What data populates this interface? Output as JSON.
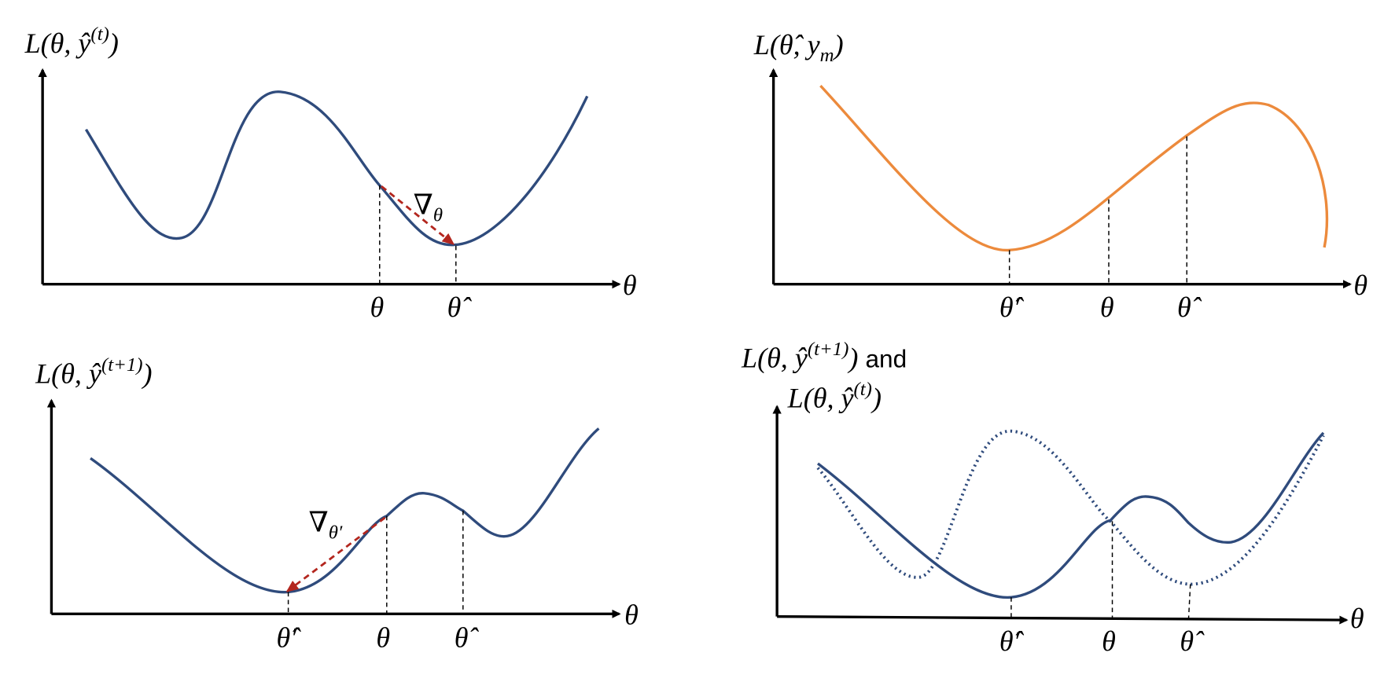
{
  "panels": [
    {
      "y_label": {
        "base": "L(θ, ŷ",
        "sup": "(t)",
        "close": ")"
      },
      "x_label": "θ",
      "ticks": [
        "θ",
        "θ̂"
      ],
      "gradient_label": {
        "base": "∇",
        "sub": "θ"
      }
    },
    {
      "y_label": {
        "base": "L(θ̂, y",
        "sub": "m",
        "close": ")"
      },
      "x_label": "θ",
      "ticks": [
        "θ̂′",
        "θ",
        "θ̂"
      ]
    },
    {
      "y_label": {
        "base": "L(θ, ŷ",
        "sup": "(t+1)",
        "close": ")"
      },
      "x_label": "θ",
      "ticks": [
        "θ̂′",
        "θ",
        "θ̂"
      ],
      "gradient_label": {
        "base": "∇",
        "sub": "θ′"
      }
    },
    {
      "y_label_lines": [
        {
          "base": "L(θ, ŷ",
          "sup": "(t+1)",
          "close": ")",
          "suffix": "and"
        },
        {
          "base": "L(θ, ŷ",
          "sup": "(t)",
          "close": ")"
        }
      ],
      "x_label": "θ",
      "ticks": [
        "θ̂′",
        "θ",
        "θ̂"
      ]
    }
  ]
}
